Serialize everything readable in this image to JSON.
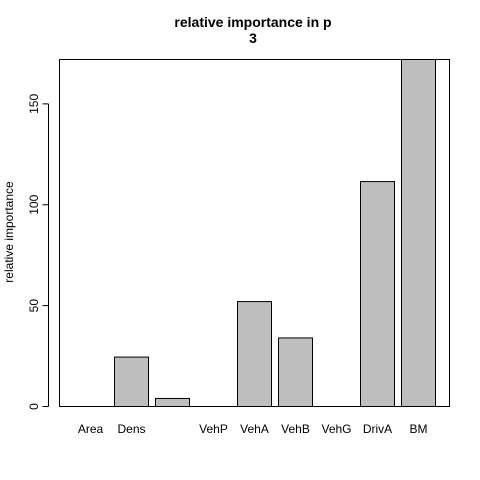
{
  "colors": {
    "bar_fill": "#bebebe",
    "bar_stroke": "#000000",
    "axis": "#000000",
    "background": "#ffffff"
  },
  "chart_data": {
    "type": "bar",
    "title_line1": "relative importance in p",
    "title_line2": "3",
    "xlabel": "",
    "ylabel": "relative importance",
    "categories": [
      "Area",
      "Dens",
      "",
      "VehP",
      "VehA",
      "VehB",
      "VehG",
      "DrivA",
      "BM"
    ],
    "values": [
      0,
      24.5,
      4,
      0,
      52,
      34,
      0,
      111.5,
      172
    ],
    "ylim": [
      0,
      172
    ],
    "yticks": [
      0,
      50,
      100,
      150
    ],
    "ytick_labels": [
      "0",
      "50",
      "100",
      "150"
    ],
    "grid": false,
    "legend": "none"
  }
}
